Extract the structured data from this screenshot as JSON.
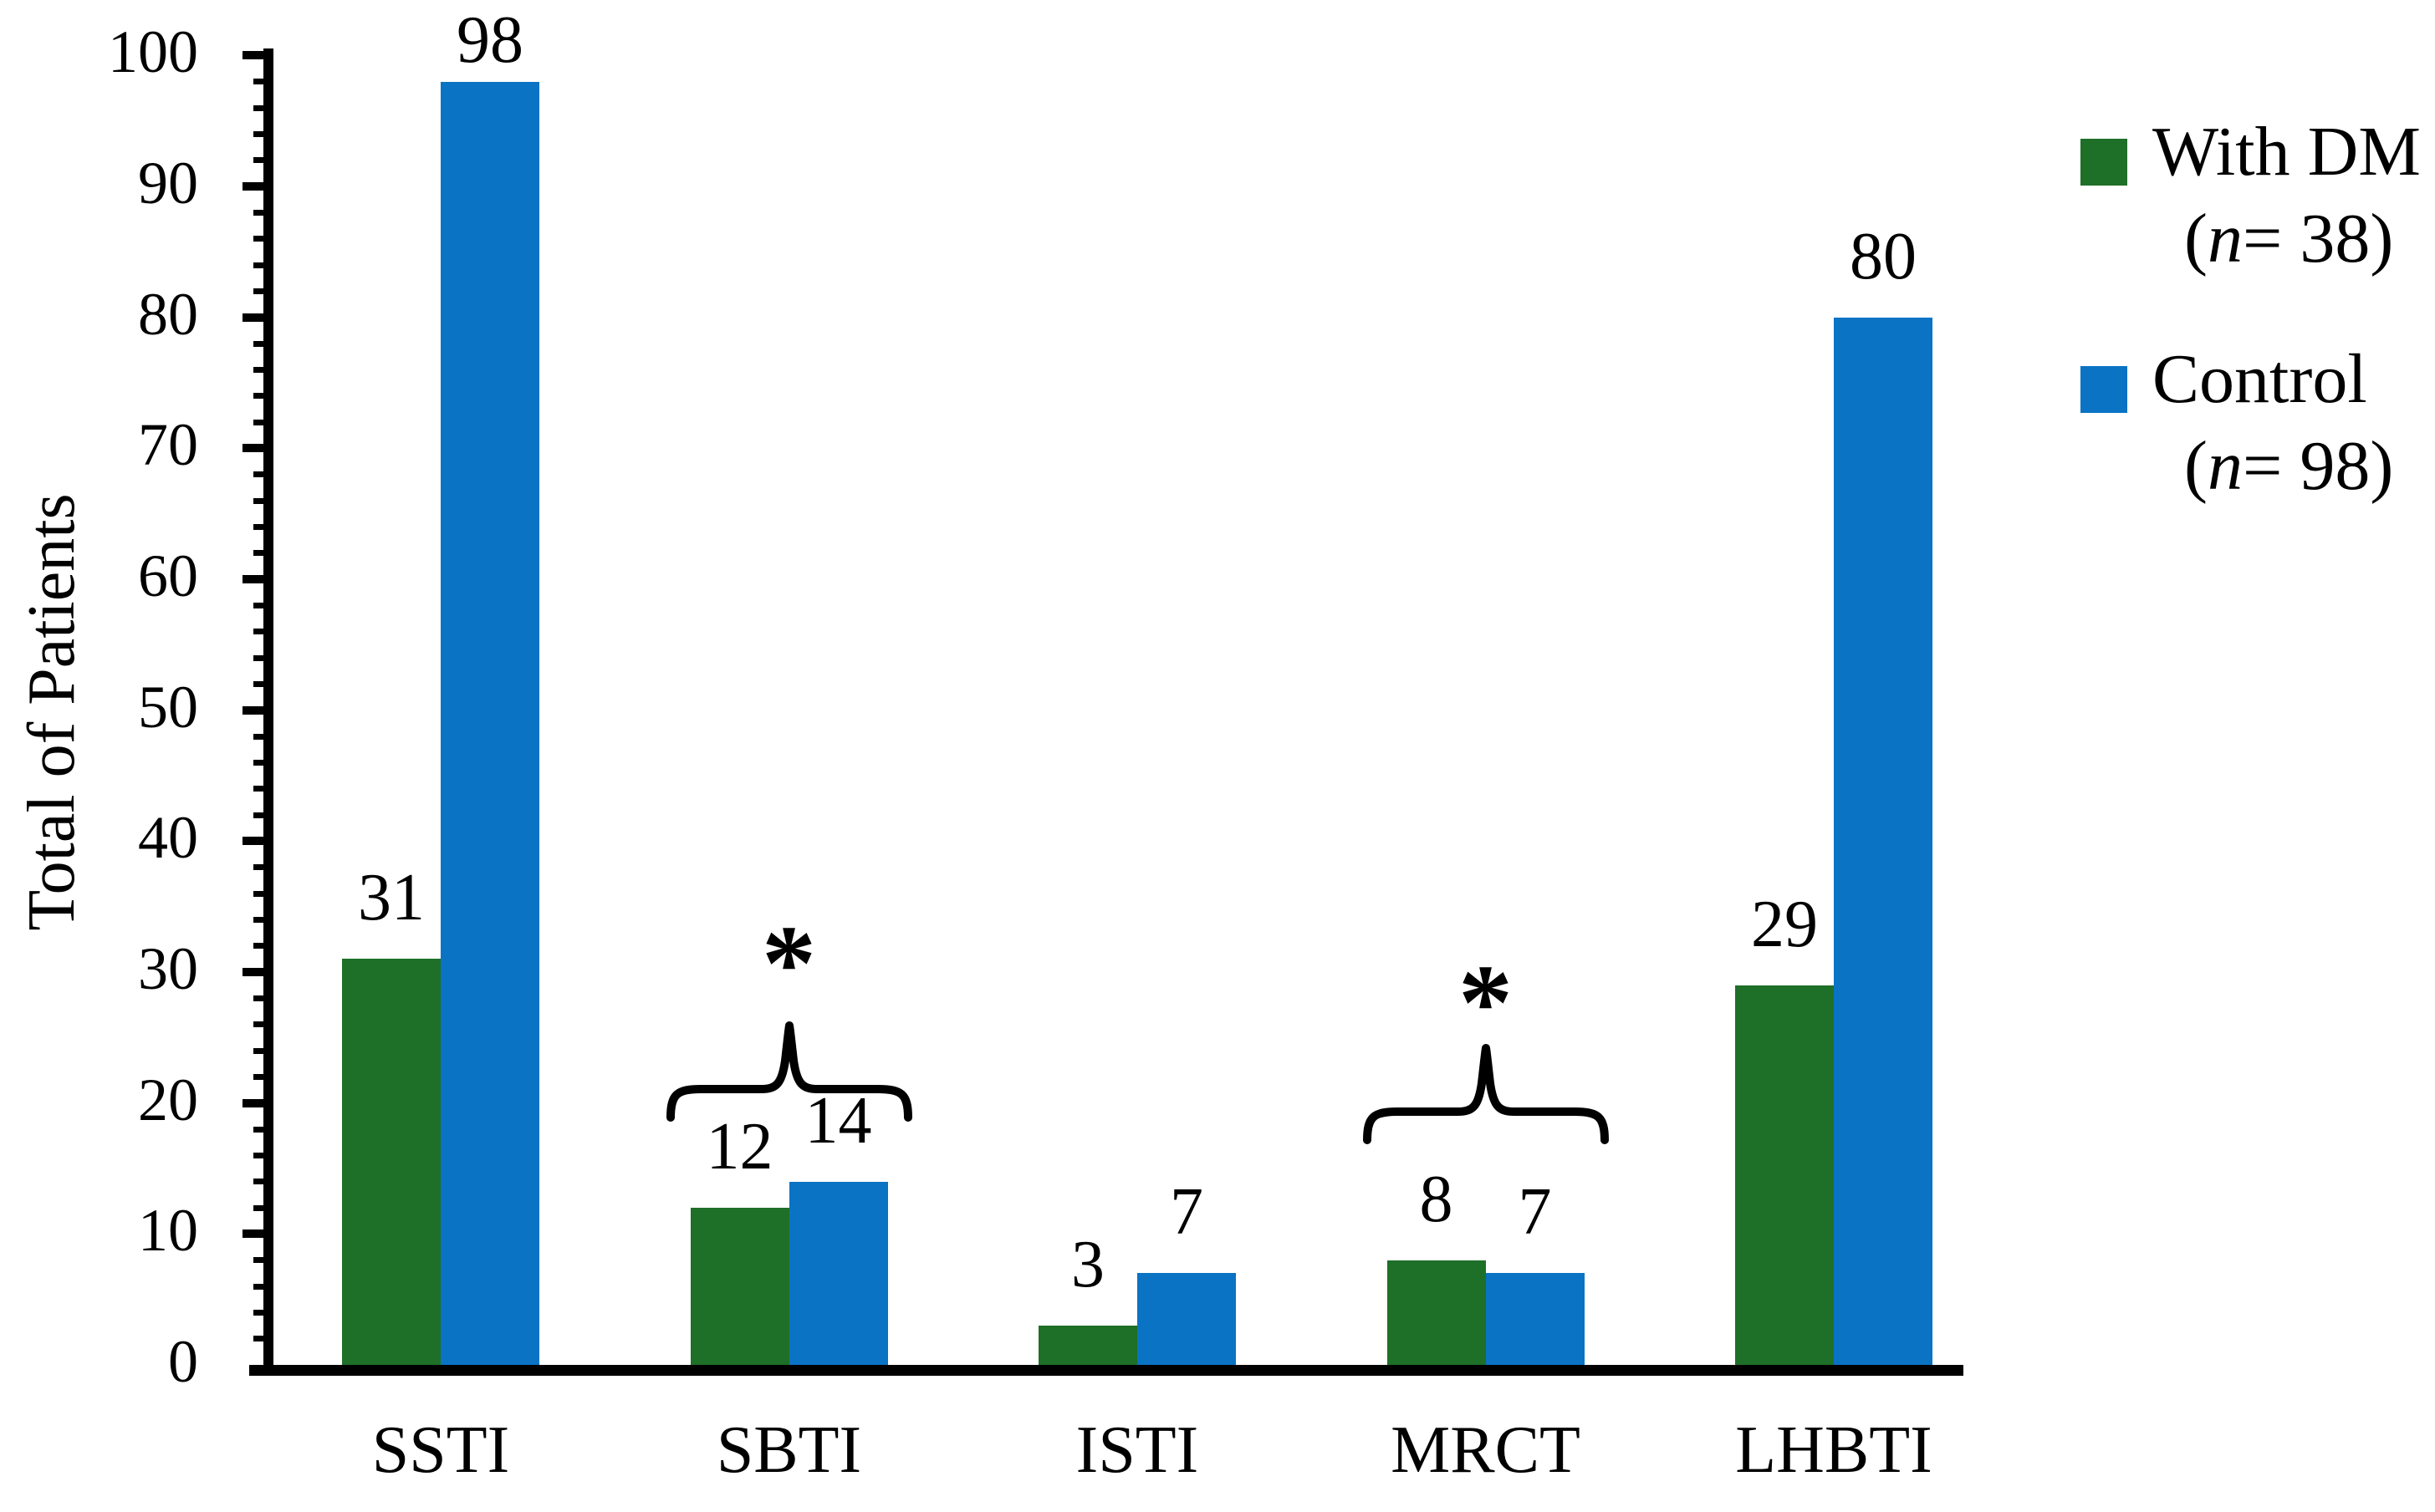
{
  "figure": {
    "background": "#ffffff",
    "axis_color": "#000000"
  },
  "chart_data": {
    "type": "bar",
    "title": "",
    "xlabel": "",
    "ylabel": "Total of Patients",
    "ylim": [
      0,
      100
    ],
    "y_major_step": 10,
    "y_minor_step": 2,
    "grid": false,
    "legend_position": "right",
    "value_labels": true,
    "categories": [
      "SSTI",
      "SBTI",
      "ISTI",
      "MRCT",
      "LHBTI"
    ],
    "series": [
      {
        "name": "With DM",
        "sub_open": "(",
        "sub_n": "n",
        "sub_rest": "= 38)",
        "color": "#1E6F28",
        "values": [
          31,
          12,
          3,
          8,
          29
        ]
      },
      {
        "name": "Control",
        "sub_open": "(",
        "sub_n": "n",
        "sub_rest": "= 98)",
        "color": "#0A73C4",
        "values": [
          98,
          14,
          7,
          7,
          80
        ]
      }
    ],
    "annotations": [
      {
        "category": "SBTI",
        "symbol": "*"
      },
      {
        "category": "MRCT",
        "symbol": "*"
      }
    ]
  }
}
